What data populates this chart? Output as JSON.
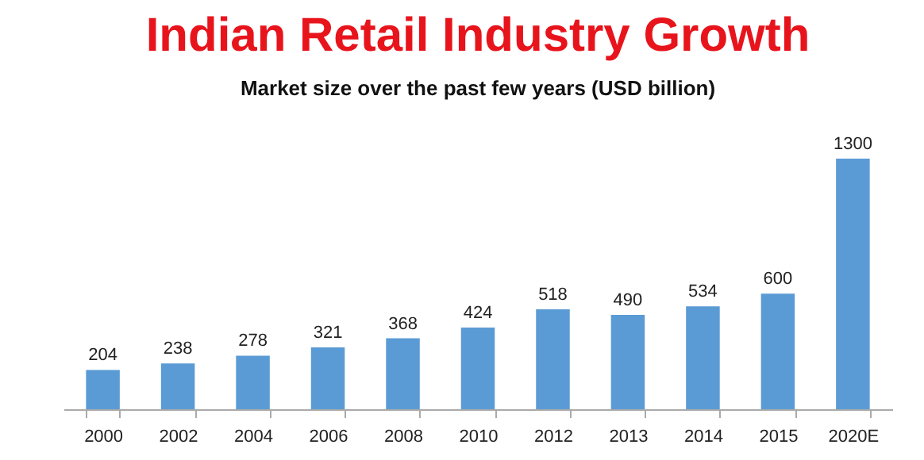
{
  "chart_data": {
    "type": "bar",
    "title": "Indian Retail Industry Growth",
    "subtitle": "Market size over the past few years (USD billion)",
    "categories": [
      "2000",
      "2002",
      "2004",
      "2006",
      "2008",
      "2010",
      "2012",
      "2013",
      "2014",
      "2015",
      "2020E"
    ],
    "values": [
      204,
      238,
      278,
      321,
      368,
      424,
      518,
      490,
      534,
      600,
      1300
    ],
    "color": "#5b9bd5",
    "data_labels": true
  }
}
